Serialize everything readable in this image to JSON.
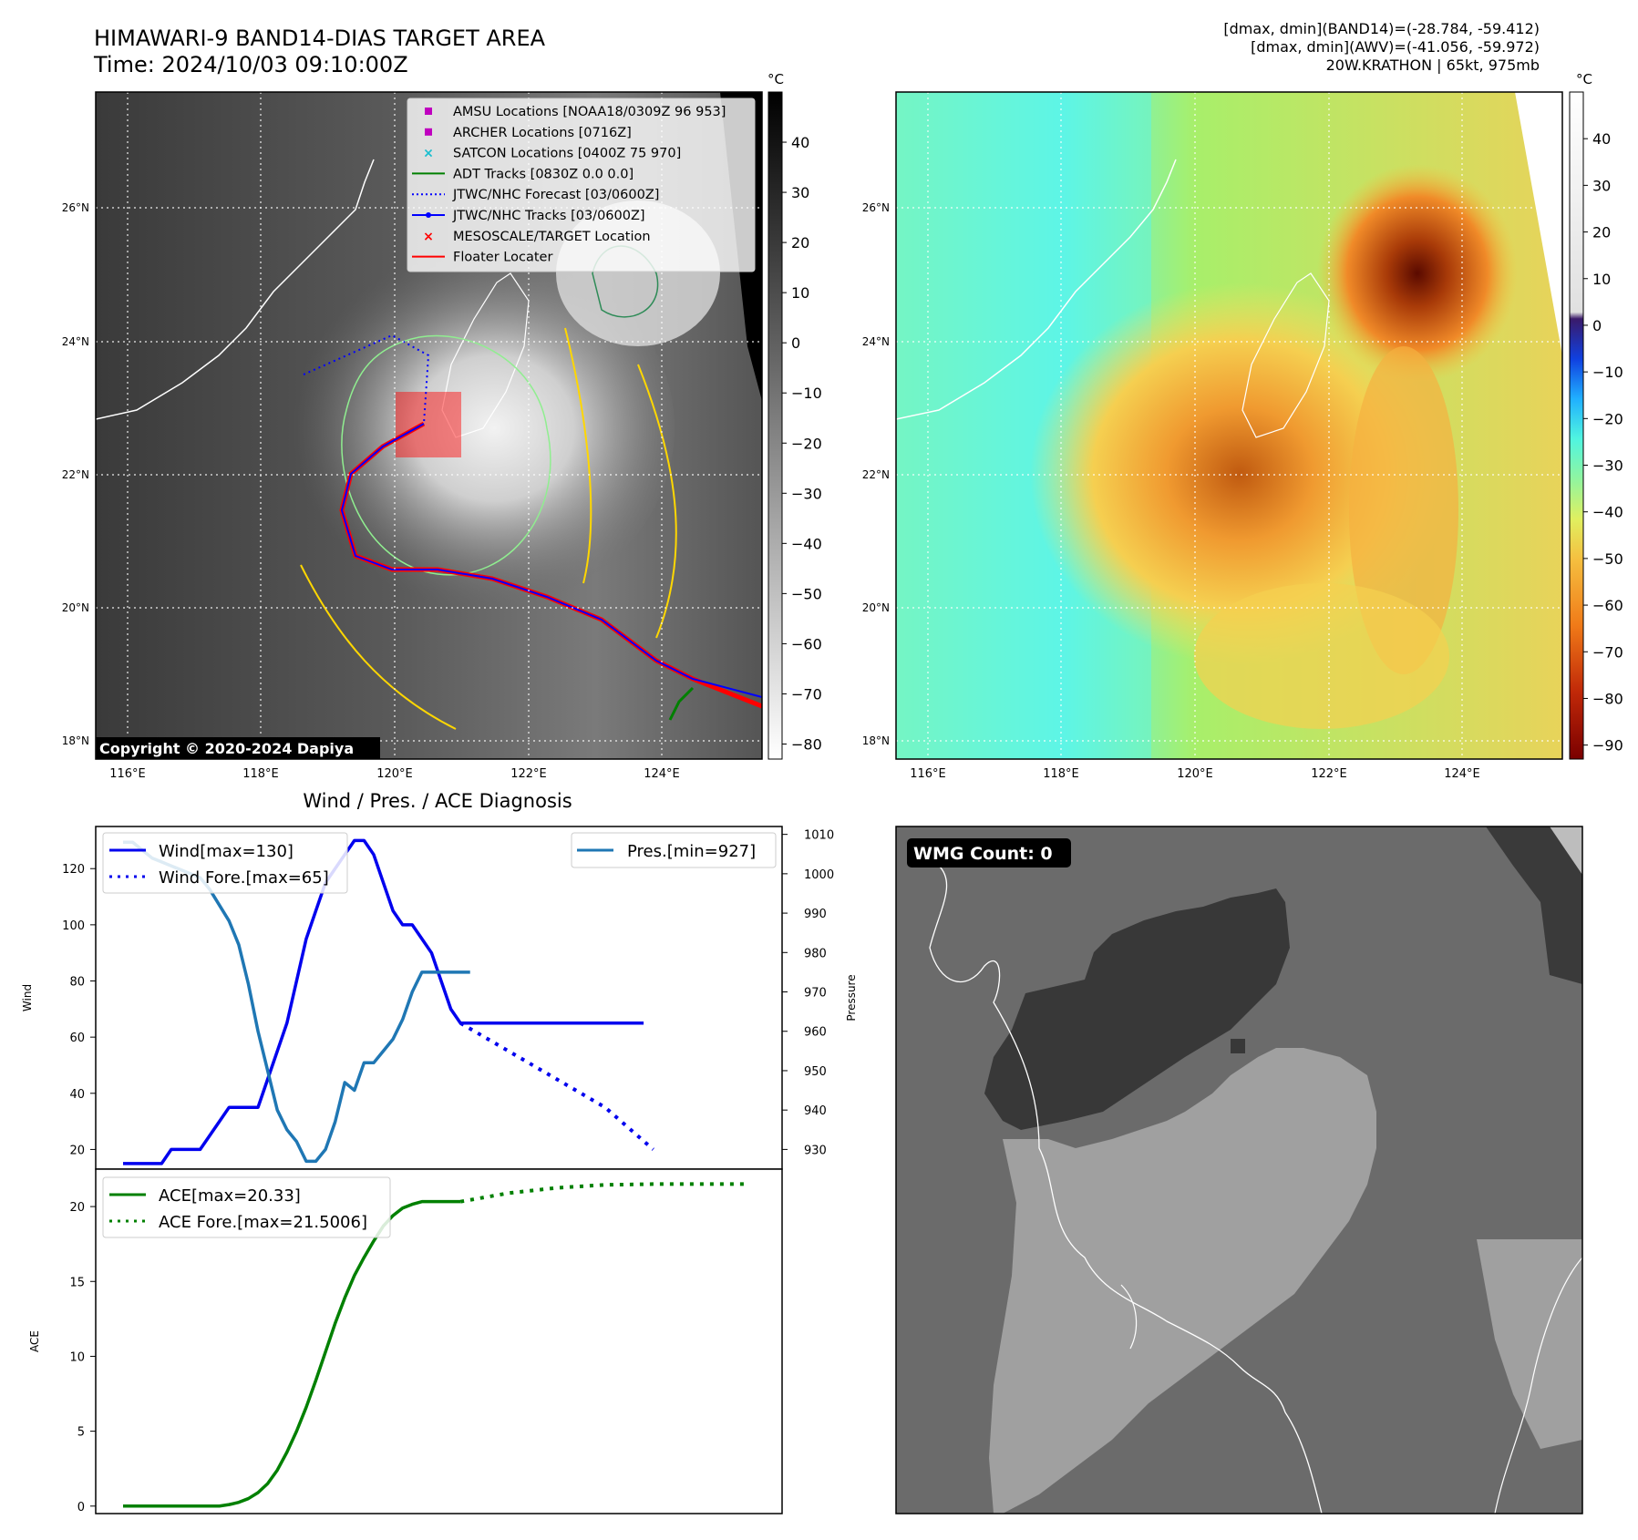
{
  "header": {
    "title": "HIMAWARI-9 BAND14-DIAS TARGET AREA",
    "time": "Time: 2024/10/03 09:10:00Z",
    "dmax_band14": "[dmax, dmin](BAND14)=(-28.784, -59.412)",
    "dmax_awv": "[dmax, dmin](AWV)=(-41.056, -59.972)",
    "storm": "20W.KRATHON | 65kt, 975mb"
  },
  "maps": {
    "lat_labels": [
      "26°N",
      "24°N",
      "22°N",
      "20°N",
      "18°N"
    ],
    "lon_labels": [
      "116°E",
      "118°E",
      "120°E",
      "122°E",
      "124°E"
    ],
    "copyright": "Copyright © 2020-2024 Dapiya",
    "legend": [
      {
        "label": "AMSU Locations [NOAA18/0309Z 96 953]",
        "color": "#bf00bf",
        "marker": "square"
      },
      {
        "label": "ARCHER Locations [0716Z]",
        "color": "#bf00bf",
        "marker": "square"
      },
      {
        "label": "SATCON Locations [0400Z 75 970]",
        "color": "#17becf",
        "marker": "x"
      },
      {
        "label": "ADT Tracks [0830Z 0.0 0.0]",
        "color": "#008000",
        "marker": "line"
      },
      {
        "label": "JTWC/NHC Forecast [03/0600Z]",
        "color": "#0000ff",
        "marker": "dotted"
      },
      {
        "label": "JTWC/NHC Tracks [03/0600Z]",
        "color": "#0000ff",
        "marker": "line-dot"
      },
      {
        "label": "MESOSCALE/TARGET Location",
        "color": "#ff0000",
        "marker": "x"
      },
      {
        "label": "Floater Locater",
        "color": "#ff0000",
        "marker": "line"
      }
    ],
    "colorbar_ir": {
      "unit": "°C",
      "ticks": [
        "40",
        "30",
        "20",
        "10",
        "0",
        "−10",
        "−20",
        "−30",
        "−40",
        "−50",
        "−60",
        "−70",
        "−80"
      ]
    },
    "colorbar_wv": {
      "unit": "°C",
      "ticks": [
        "40",
        "30",
        "20",
        "10",
        "0",
        "−10",
        "−20",
        "−30",
        "−40",
        "−50",
        "−60",
        "−70",
        "−80",
        "−90"
      ]
    },
    "wmg_label": "WMG Count: 0"
  },
  "chart_data": [
    {
      "type": "line",
      "title": "Wind / Pres. / ACE Diagnosis",
      "ylabel": "Wind",
      "ylabel_right": "Pressure",
      "ylim": [
        13,
        135
      ],
      "ylim_right": [
        925,
        1012
      ],
      "yticks": [
        20,
        40,
        60,
        80,
        100,
        120
      ],
      "yticks_right": [
        930,
        940,
        950,
        960,
        970,
        980,
        990,
        1000,
        1010
      ],
      "x": [
        0,
        1,
        2,
        3,
        4,
        5,
        6,
        7,
        8,
        9,
        10,
        11,
        12,
        13,
        14,
        15,
        16,
        17,
        18,
        19,
        20,
        21,
        22,
        23,
        24,
        25,
        26,
        27,
        28,
        29,
        30,
        31,
        32,
        33,
        34,
        35,
        36,
        37,
        38,
        39,
        40,
        41,
        42,
        43,
        44,
        45,
        46,
        47,
        48,
        49,
        50,
        51,
        52,
        53,
        54,
        55,
        56,
        57,
        58,
        59,
        60,
        61,
        62,
        63,
        64,
        65,
        66
      ],
      "series": [
        {
          "name": "Wind[max=130]",
          "color": "#0000ee",
          "style": "solid",
          "x": [
            0,
            1,
            2,
            3,
            4,
            5,
            6,
            7,
            8,
            9,
            10,
            11,
            12,
            13,
            14,
            15,
            16,
            17,
            18,
            19,
            20,
            21,
            22,
            23,
            24,
            25,
            26,
            27,
            28,
            29,
            30,
            31,
            32,
            33,
            34,
            35,
            36,
            37,
            38,
            39,
            40,
            41,
            42,
            43,
            44,
            45,
            46,
            47,
            48,
            49,
            50,
            51,
            52,
            53,
            54
          ],
          "values": [
            15,
            15,
            15,
            15,
            15,
            20,
            20,
            20,
            20,
            25,
            30,
            35,
            35,
            35,
            35,
            45,
            55,
            65,
            80,
            95,
            105,
            115,
            120,
            125,
            130,
            130,
            125,
            115,
            105,
            100,
            100,
            95,
            90,
            80,
            70,
            65,
            65,
            65,
            65,
            65,
            65,
            65,
            65,
            65,
            65,
            65,
            65,
            65,
            65,
            65,
            65,
            65,
            65,
            65,
            65
          ]
        },
        {
          "name": "Wind Fore.[max=65]",
          "color": "#0000ee",
          "style": "dotted",
          "x": [
            35,
            40,
            45,
            50,
            55
          ],
          "values": [
            65,
            55,
            45,
            35,
            20
          ]
        },
        {
          "name": "Pres.[min=927]",
          "color": "#1f77b4",
          "style": "solid",
          "x": [
            0,
            1,
            2,
            3,
            4,
            5,
            6,
            7,
            8,
            9,
            10,
            11,
            12,
            13,
            14,
            15,
            16,
            17,
            18,
            19,
            20,
            21,
            22,
            23,
            24,
            25,
            26,
            27,
            28,
            29,
            30,
            31,
            32,
            33,
            34,
            35,
            36
          ],
          "values": [
            1008,
            1008,
            1006,
            1004,
            1003,
            1002,
            1001,
            1000,
            999,
            996,
            992,
            988,
            982,
            972,
            960,
            950,
            940,
            935,
            932,
            927,
            927,
            930,
            937,
            947,
            945,
            952,
            952,
            955,
            958,
            963,
            970,
            975,
            975,
            975,
            975,
            975,
            975
          ]
        }
      ]
    },
    {
      "type": "line",
      "ylabel": "ACE",
      "ylim": [
        -0.5,
        22.5
      ],
      "yticks": [
        0,
        5,
        10,
        15,
        20
      ],
      "series": [
        {
          "name": "ACE[max=20.33]",
          "color": "#008000",
          "style": "solid",
          "x": [
            0,
            2,
            4,
            6,
            8,
            10,
            11,
            12,
            13,
            14,
            15,
            16,
            17,
            18,
            19,
            20,
            21,
            22,
            23,
            24,
            25,
            26,
            27,
            28,
            29,
            30,
            31,
            32,
            33,
            34,
            35
          ],
          "values": [
            0,
            0,
            0,
            0,
            0,
            0,
            0.1,
            0.25,
            0.5,
            0.9,
            1.5,
            2.4,
            3.6,
            5.0,
            6.6,
            8.4,
            10.3,
            12.2,
            13.9,
            15.4,
            16.6,
            17.7,
            18.7,
            19.4,
            19.9,
            20.15,
            20.33,
            20.33,
            20.33,
            20.33,
            20.33
          ]
        },
        {
          "name": "ACE Fore.[max=21.5006]",
          "color": "#008000",
          "style": "dotted",
          "x": [
            35,
            40,
            45,
            50,
            55,
            60,
            65
          ],
          "values": [
            20.33,
            20.9,
            21.25,
            21.45,
            21.5,
            21.5006,
            21.5006
          ]
        }
      ]
    }
  ]
}
